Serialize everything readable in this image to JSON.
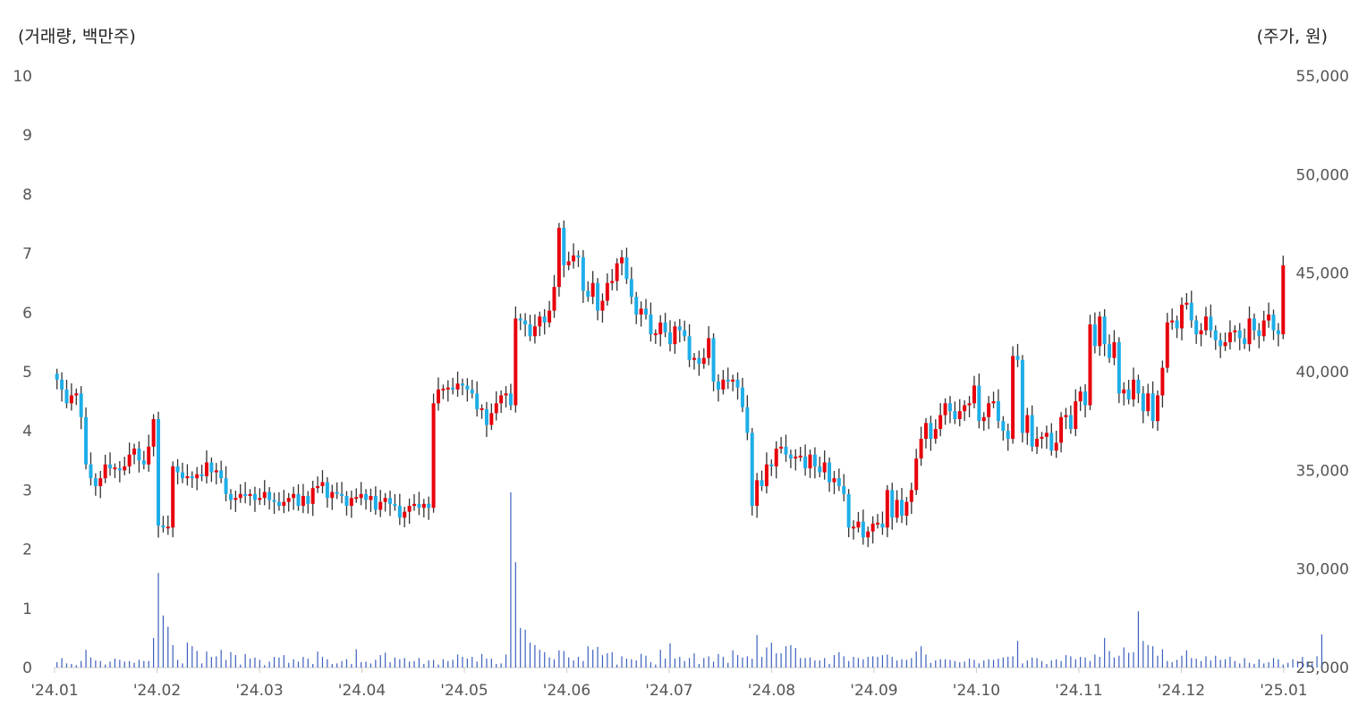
{
  "chart_data": {
    "type": "candlestick",
    "left_axis_label": "(거래량, 백만주)",
    "right_axis_label": "(주가, 원)",
    "left_ticks": [
      "0",
      "1",
      "2",
      "3",
      "4",
      "5",
      "6",
      "7",
      "8",
      "9",
      "10"
    ],
    "right_ticks": [
      "25,000",
      "30,000",
      "35,000",
      "40,000",
      "45,000",
      "50,000",
      "55,000"
    ],
    "x_ticks": [
      "'24.01",
      "'24.02",
      "'24.03",
      "'24.04",
      "'24.05",
      "'24.06",
      "'24.07",
      "'24.08",
      "'24.09",
      "'24.10",
      "'24.11",
      "'24.12",
      "'25.01"
    ],
    "y_left_range": [
      0,
      10
    ],
    "y_right_range": [
      25000,
      55000
    ],
    "colors": {
      "up": "#e8000b",
      "down": "#1eaee8",
      "wick": "#333333",
      "volume": "#3a5fbe",
      "axis": "#cccccc"
    },
    "price_close": [
      39600,
      39100,
      38400,
      38800,
      38900,
      37700,
      35300,
      34600,
      34200,
      34600,
      35300,
      35100,
      35100,
      35000,
      35200,
      35800,
      36100,
      35500,
      35300,
      36200,
      37600,
      32200,
      32100,
      32100,
      35200,
      34900,
      34600,
      34700,
      34600,
      34800,
      34700,
      35400,
      34900,
      35000,
      34600,
      33800,
      33500,
      33600,
      33800,
      33700,
      33800,
      33500,
      33600,
      33900,
      33500,
      33400,
      33200,
      33400,
      33600,
      33800,
      33200,
      33700,
      33300,
      34100,
      34200,
      34400,
      33600,
      33900,
      33800,
      33700,
      33200,
      33600,
      33600,
      33800,
      33500,
      33700,
      33000,
      33400,
      33600,
      33300,
      33200,
      32600,
      32900,
      33200,
      33300,
      33100,
      33300,
      33100,
      38400,
      39100,
      39100,
      39200,
      39100,
      39400,
      39300,
      39100,
      38900,
      38100,
      38100,
      37300,
      37900,
      38400,
      38800,
      38900,
      38300,
      42700,
      42600,
      42400,
      41800,
      42300,
      42800,
      42500,
      43100,
      44300,
      47300,
      45400,
      45600,
      45900,
      45800,
      44100,
      43800,
      44500,
      43100,
      43600,
      44500,
      44600,
      45500,
      45800,
      44700,
      43800,
      42900,
      43200,
      42900,
      41900,
      41900,
      42500,
      42000,
      41400,
      42300,
      42100,
      41800,
      40600,
      40700,
      40400,
      40700,
      41700,
      39500,
      39100,
      39600,
      39500,
      39600,
      39200,
      38200,
      36900,
      33200,
      34500,
      34200,
      35300,
      35200,
      36100,
      36200,
      35800,
      35600,
      35700,
      35700,
      35100,
      35800,
      35200,
      34900,
      35400,
      34400,
      34600,
      34200,
      33800,
      32100,
      32100,
      32400,
      31600,
      31900,
      32300,
      32300,
      32100,
      34000,
      32600,
      33500,
      32700,
      33400,
      34000,
      35600,
      36600,
      37400,
      36600,
      37100,
      37800,
      38400,
      38000,
      37600,
      38000,
      38300,
      38400,
      39300,
      37500,
      37700,
      38400,
      38500,
      37500,
      37000,
      36600,
      40800,
      40600,
      36900,
      37800,
      36200,
      36600,
      36700,
      36900,
      36000,
      36400,
      37700,
      37800,
      37100,
      38500,
      39000,
      38300,
      42400,
      41300,
      42800,
      41400,
      40700,
      41500,
      38900,
      39100,
      38600,
      39600,
      38900,
      38000,
      38900,
      37500,
      38800,
      40200,
      42500,
      42600,
      42200,
      43400,
      43500,
      42600,
      41900,
      42100,
      42800,
      42100,
      41600,
      41300,
      41500,
      42000,
      42100,
      41700,
      41400,
      42700,
      42100,
      41800,
      42600,
      42900,
      42100,
      41900,
      45400
    ],
    "volume": [
      0.09,
      0.16,
      0.07,
      0.06,
      0.04,
      0.11,
      0.3,
      0.17,
      0.12,
      0.11,
      0.05,
      0.1,
      0.15,
      0.13,
      0.1,
      0.11,
      0.08,
      0.13,
      0.11,
      0.11,
      0.5,
      1.6,
      0.88,
      0.69,
      0.38,
      0.13,
      0.07,
      0.42,
      0.36,
      0.28,
      0.07,
      0.27,
      0.18,
      0.19,
      0.3,
      0.13,
      0.26,
      0.21,
      0.05,
      0.23,
      0.15,
      0.17,
      0.13,
      0.04,
      0.1,
      0.18,
      0.17,
      0.21,
      0.08,
      0.14,
      0.1,
      0.18,
      0.15,
      0.06,
      0.27,
      0.18,
      0.14,
      0.06,
      0.07,
      0.11,
      0.14,
      0.06,
      0.31,
      0.09,
      0.1,
      0.07,
      0.13,
      0.21,
      0.25,
      0.09,
      0.17,
      0.14,
      0.16,
      0.1,
      0.11,
      0.16,
      0.06,
      0.12,
      0.13,
      0.05,
      0.14,
      0.11,
      0.13,
      0.22,
      0.18,
      0.15,
      0.18,
      0.1,
      0.23,
      0.15,
      0.15,
      0.06,
      0.07,
      0.22,
      2.96,
      1.78,
      0.67,
      0.64,
      0.42,
      0.38,
      0.3,
      0.26,
      0.17,
      0.14,
      0.29,
      0.28,
      0.17,
      0.12,
      0.18,
      0.11,
      0.36,
      0.3,
      0.35,
      0.21,
      0.24,
      0.26,
      0.05,
      0.19,
      0.15,
      0.14,
      0.12,
      0.23,
      0.2,
      0.09,
      0.05,
      0.3,
      0.15,
      0.41,
      0.15,
      0.18,
      0.11,
      0.16,
      0.24,
      0.06,
      0.16,
      0.19,
      0.1,
      0.23,
      0.18,
      0.08,
      0.29,
      0.21,
      0.17,
      0.19,
      0.15,
      0.55,
      0.18,
      0.34,
      0.42,
      0.24,
      0.24,
      0.36,
      0.38,
      0.33,
      0.16,
      0.16,
      0.17,
      0.12,
      0.12,
      0.16,
      0.06,
      0.21,
      0.26,
      0.19,
      0.11,
      0.18,
      0.16,
      0.14,
      0.18,
      0.19,
      0.18,
      0.21,
      0.22,
      0.18,
      0.12,
      0.14,
      0.13,
      0.16,
      0.27,
      0.36,
      0.22,
      0.08,
      0.12,
      0.14,
      0.14,
      0.13,
      0.11,
      0.09,
      0.1,
      0.15,
      0.13,
      0.07,
      0.12,
      0.14,
      0.13,
      0.15,
      0.17,
      0.18,
      0.19,
      0.45,
      0.07,
      0.12,
      0.17,
      0.16,
      0.11,
      0.06,
      0.12,
      0.14,
      0.11,
      0.21,
      0.19,
      0.14,
      0.18,
      0.17,
      0.11,
      0.22,
      0.18,
      0.5,
      0.28,
      0.17,
      0.2,
      0.34,
      0.25,
      0.26,
      0.95,
      0.45,
      0.38,
      0.36,
      0.2,
      0.31,
      0.11,
      0.09,
      0.13,
      0.2,
      0.29,
      0.16,
      0.15,
      0.11,
      0.19,
      0.12,
      0.2,
      0.13,
      0.14,
      0.18,
      0.11,
      0.07,
      0.16,
      0.08,
      0.06,
      0.14,
      0.07,
      0.09,
      0.16,
      0.14,
      0.05,
      0.08,
      0.14,
      0.11,
      0.18,
      0.1,
      0.07,
      0.19,
      0.56
    ]
  }
}
